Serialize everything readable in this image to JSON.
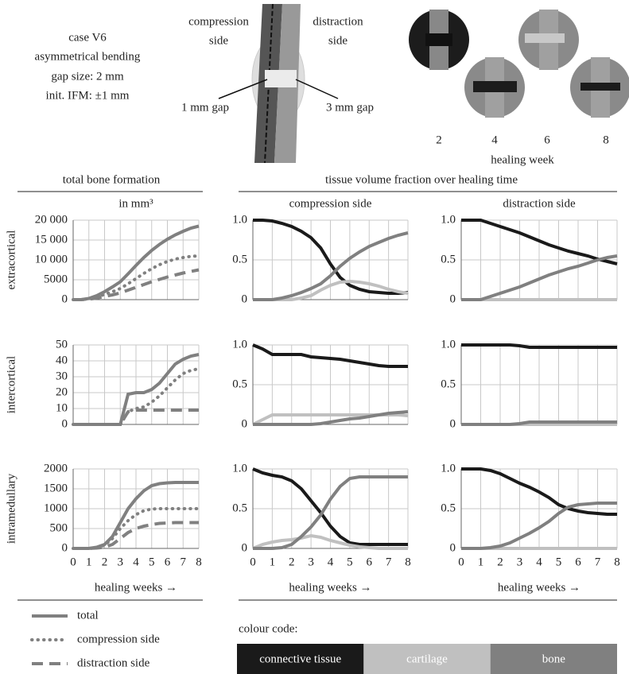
{
  "case_info": [
    "case V6",
    "asymmetrical bending",
    "gap size: 2 mm",
    "init. IFM: ±1 mm"
  ],
  "diagram": {
    "compression_label": [
      "compression",
      "side"
    ],
    "distraction_label": [
      "distraction",
      "side"
    ],
    "gap_left": "1 mm gap",
    "gap_right": "3 mm gap"
  },
  "healing_images": {
    "weeks": [
      "2",
      "4",
      "6",
      "8"
    ],
    "label": "healing week"
  },
  "headings": {
    "left": "total bone formation",
    "right": "tissue volume fraction over healing time"
  },
  "colour_code_label": "colour code:",
  "chart_data": [
    {
      "type": "line",
      "title": "in mm³",
      "ylabel": "extracortical",
      "x": [
        0,
        0.5,
        1,
        1.5,
        2,
        2.5,
        3,
        3.5,
        4,
        4.5,
        5,
        5.5,
        6,
        6.5,
        7,
        7.5,
        8
      ],
      "xlim": [
        0,
        8
      ],
      "xticks": [
        0,
        1,
        2,
        3,
        4,
        5,
        6,
        7,
        8
      ],
      "ylim": [
        0,
        20000
      ],
      "yticks": [
        0,
        5000,
        {
          "value": 10000,
          "label": "10 000"
        },
        {
          "value": 15000,
          "label": "15 000"
        },
        {
          "value": 20000,
          "label": "20 000"
        }
      ],
      "grid": true,
      "series": [
        {
          "name": "total",
          "color": "#808080",
          "dash": "solid",
          "values": [
            0,
            0,
            300,
            1000,
            2000,
            3200,
            4500,
            6500,
            8600,
            10600,
            12400,
            13900,
            15200,
            16300,
            17200,
            18000,
            18500
          ]
        },
        {
          "name": "compression side",
          "color": "#808080",
          "dash": "dotted",
          "values": [
            0,
            0,
            200,
            700,
            1300,
            2000,
            2800,
            4000,
            5300,
            6600,
            7800,
            8800,
            9600,
            10200,
            10600,
            10900,
            11000
          ]
        },
        {
          "name": "distraction side",
          "color": "#808080",
          "dash": "dashed",
          "values": [
            0,
            0,
            100,
            400,
            800,
            1200,
            1700,
            2400,
            3100,
            3800,
            4500,
            5100,
            5700,
            6200,
            6700,
            7100,
            7500
          ]
        }
      ]
    },
    {
      "type": "line",
      "title": "compression side",
      "x": [
        0,
        0.5,
        1,
        1.5,
        2,
        2.5,
        3,
        3.5,
        4,
        4.5,
        5,
        5.5,
        6,
        6.5,
        7,
        7.5,
        8
      ],
      "xlim": [
        0,
        8
      ],
      "xticks": [
        0,
        1,
        2,
        3,
        4,
        5,
        6,
        7,
        8
      ],
      "ylim": [
        0,
        1
      ],
      "yticks": [
        0,
        0.5,
        {
          "value": 1,
          "label": "1.0"
        }
      ],
      "grid": true,
      "series": [
        {
          "name": "connective tissue",
          "color": "#1a1a1a",
          "dash": "solid",
          "values": [
            1,
            1,
            0.99,
            0.96,
            0.92,
            0.86,
            0.78,
            0.65,
            0.45,
            0.28,
            0.18,
            0.13,
            0.1,
            0.09,
            0.08,
            0.08,
            0.09
          ]
        },
        {
          "name": "cartilage",
          "color": "#c0c0c0",
          "dash": "solid",
          "values": [
            0,
            0,
            0,
            0,
            0,
            0.02,
            0.05,
            0.12,
            0.18,
            0.22,
            0.23,
            0.22,
            0.2,
            0.17,
            0.13,
            0.1,
            0.08
          ]
        },
        {
          "name": "bone",
          "color": "#808080",
          "dash": "solid",
          "values": [
            0,
            0,
            0,
            0.02,
            0.05,
            0.09,
            0.14,
            0.2,
            0.3,
            0.42,
            0.52,
            0.6,
            0.67,
            0.72,
            0.77,
            0.81,
            0.84
          ]
        }
      ]
    },
    {
      "type": "line",
      "title": "distraction side",
      "x": [
        0,
        0.5,
        1,
        1.5,
        2,
        2.5,
        3,
        3.5,
        4,
        4.5,
        5,
        5.5,
        6,
        6.5,
        7,
        7.5,
        8
      ],
      "xlim": [
        0,
        8
      ],
      "xticks": [
        0,
        1,
        2,
        3,
        4,
        5,
        6,
        7,
        8
      ],
      "ylim": [
        0,
        1
      ],
      "yticks": [
        0,
        0.5,
        {
          "value": 1,
          "label": "1.0"
        }
      ],
      "grid": true,
      "series": [
        {
          "color": "#1a1a1a",
          "dash": "solid",
          "values": [
            1,
            1,
            1,
            0.96,
            0.92,
            0.88,
            0.84,
            0.79,
            0.74,
            0.69,
            0.65,
            0.61,
            0.58,
            0.55,
            0.51,
            0.48,
            0.45
          ]
        },
        {
          "color": "#c0c0c0",
          "dash": "solid",
          "values": [
            0,
            0,
            0,
            0,
            0,
            0,
            0,
            0,
            0,
            0,
            0,
            0,
            0,
            0,
            0,
            0,
            0
          ]
        },
        {
          "color": "#808080",
          "dash": "solid",
          "values": [
            0,
            0,
            0,
            0.04,
            0.08,
            0.12,
            0.16,
            0.21,
            0.26,
            0.31,
            0.35,
            0.39,
            0.42,
            0.46,
            0.5,
            0.53,
            0.55
          ]
        }
      ]
    },
    {
      "type": "line",
      "ylabel": "intercortical",
      "x": [
        0,
        0.5,
        1,
        1.5,
        2,
        2.5,
        3,
        3.5,
        4,
        4.5,
        5,
        5.5,
        6,
        6.5,
        7,
        7.5,
        8
      ],
      "xlim": [
        0,
        8
      ],
      "xticks": [
        0,
        1,
        2,
        3,
        4,
        5,
        6,
        7,
        8
      ],
      "ylim": [
        0,
        50
      ],
      "yticks": [
        0,
        10,
        20,
        30,
        40,
        50
      ],
      "grid": true,
      "series": [
        {
          "color": "#808080",
          "dash": "solid",
          "values": [
            0,
            0,
            0,
            0,
            0,
            0,
            0,
            19,
            20,
            20,
            22,
            26,
            32,
            38,
            41,
            43,
            44
          ]
        },
        {
          "color": "#808080",
          "dash": "dotted",
          "values": [
            0,
            0,
            0,
            0,
            0,
            0,
            0,
            8,
            10,
            11,
            14,
            18,
            23,
            28,
            32,
            34,
            35
          ]
        },
        {
          "color": "#808080",
          "dash": "dashed",
          "values": [
            0,
            0,
            0,
            0,
            0,
            0,
            0,
            8,
            9,
            9,
            9,
            9,
            9,
            9,
            9,
            9,
            9
          ]
        }
      ]
    },
    {
      "type": "line",
      "x": [
        0,
        0.5,
        1,
        1.5,
        2,
        2.5,
        3,
        3.5,
        4,
        4.5,
        5,
        5.5,
        6,
        6.5,
        7,
        7.5,
        8
      ],
      "xlim": [
        0,
        8
      ],
      "xticks": [
        0,
        1,
        2,
        3,
        4,
        5,
        6,
        7,
        8
      ],
      "ylim": [
        0,
        1
      ],
      "yticks": [
        0,
        0.5,
        {
          "value": 1,
          "label": "1.0"
        }
      ],
      "grid": true,
      "series": [
        {
          "color": "#1a1a1a",
          "dash": "solid",
          "values": [
            1,
            0.95,
            0.88,
            0.88,
            0.88,
            0.88,
            0.85,
            0.84,
            0.83,
            0.82,
            0.8,
            0.78,
            0.76,
            0.74,
            0.73,
            0.73,
            0.73
          ]
        },
        {
          "color": "#c0c0c0",
          "dash": "solid",
          "values": [
            0,
            0.06,
            0.12,
            0.12,
            0.12,
            0.12,
            0.12,
            0.12,
            0.12,
            0.12,
            0.12,
            0.12,
            0.12,
            0.12,
            0.12,
            0.12,
            0.11
          ]
        },
        {
          "color": "#808080",
          "dash": "solid",
          "values": [
            0,
            0,
            0,
            0,
            0,
            0,
            0,
            0.01,
            0.03,
            0.05,
            0.07,
            0.08,
            0.1,
            0.12,
            0.14,
            0.15,
            0.16
          ]
        }
      ]
    },
    {
      "type": "line",
      "x": [
        0,
        0.5,
        1,
        1.5,
        2,
        2.5,
        3,
        3.5,
        4,
        4.5,
        5,
        5.5,
        6,
        6.5,
        7,
        7.5,
        8
      ],
      "xlim": [
        0,
        8
      ],
      "xticks": [
        0,
        1,
        2,
        3,
        4,
        5,
        6,
        7,
        8
      ],
      "ylim": [
        0,
        1
      ],
      "yticks": [
        0,
        0.5,
        {
          "value": 1,
          "label": "1.0"
        }
      ],
      "grid": true,
      "series": [
        {
          "color": "#1a1a1a",
          "dash": "solid",
          "values": [
            1,
            1,
            1,
            1,
            1,
            1,
            0.99,
            0.97,
            0.97,
            0.97,
            0.97,
            0.97,
            0.97,
            0.97,
            0.97,
            0.97,
            0.97
          ]
        },
        {
          "color": "#c0c0c0",
          "dash": "solid",
          "values": [
            0,
            0,
            0,
            0,
            0,
            0,
            0,
            0,
            0,
            0,
            0,
            0,
            0,
            0,
            0,
            0,
            0
          ]
        },
        {
          "color": "#808080",
          "dash": "solid",
          "values": [
            0,
            0,
            0,
            0,
            0,
            0,
            0.01,
            0.03,
            0.03,
            0.03,
            0.03,
            0.03,
            0.03,
            0.03,
            0.03,
            0.03,
            0.03
          ]
        }
      ]
    },
    {
      "type": "line",
      "ylabel": "intramedullary",
      "xlabel": "healing weeks →",
      "x": [
        0,
        0.5,
        1,
        1.5,
        2,
        2.5,
        3,
        3.5,
        4,
        4.5,
        5,
        5.5,
        6,
        6.5,
        7,
        7.5,
        8
      ],
      "xlim": [
        0,
        8
      ],
      "xticks": [
        0,
        1,
        2,
        3,
        4,
        5,
        6,
        7,
        8
      ],
      "ylim": [
        0,
        2000
      ],
      "yticks": [
        0,
        500,
        1000,
        1500,
        2000
      ],
      "grid": true,
      "series": [
        {
          "color": "#808080",
          "dash": "solid",
          "values": [
            0,
            0,
            0,
            30,
            100,
            300,
            650,
            1000,
            1250,
            1450,
            1580,
            1630,
            1650,
            1660,
            1660,
            1660,
            1660
          ]
        },
        {
          "color": "#808080",
          "dash": "dotted",
          "values": [
            0,
            0,
            0,
            20,
            80,
            250,
            500,
            700,
            850,
            950,
            990,
            1000,
            1000,
            1000,
            1000,
            1000,
            1000
          ]
        },
        {
          "color": "#808080",
          "dash": "dashed",
          "values": [
            0,
            0,
            0,
            10,
            30,
            100,
            250,
            400,
            500,
            560,
            600,
            630,
            640,
            650,
            650,
            650,
            650
          ]
        }
      ]
    },
    {
      "type": "line",
      "xlabel": "healing weeks →",
      "x": [
        0,
        0.5,
        1,
        1.5,
        2,
        2.5,
        3,
        3.5,
        4,
        4.5,
        5,
        5.5,
        6,
        6.5,
        7,
        7.5,
        8
      ],
      "xlim": [
        0,
        8
      ],
      "xticks": [
        0,
        1,
        2,
        3,
        4,
        5,
        6,
        7,
        8
      ],
      "ylim": [
        0,
        1
      ],
      "yticks": [
        0,
        0.5,
        {
          "value": 1,
          "label": "1.0"
        }
      ],
      "grid": true,
      "series": [
        {
          "color": "#1a1a1a",
          "dash": "solid",
          "values": [
            1,
            0.95,
            0.92,
            0.9,
            0.85,
            0.75,
            0.6,
            0.45,
            0.28,
            0.15,
            0.07,
            0.05,
            0.05,
            0.05,
            0.05,
            0.05,
            0.05
          ]
        },
        {
          "color": "#c0c0c0",
          "dash": "solid",
          "values": [
            0,
            0.05,
            0.08,
            0.1,
            0.11,
            0.13,
            0.16,
            0.14,
            0.1,
            0.07,
            0.04,
            0.02,
            0.01,
            0,
            0,
            0,
            0
          ]
        },
        {
          "color": "#808080",
          "dash": "solid",
          "values": [
            0,
            0,
            0,
            0.01,
            0.05,
            0.15,
            0.27,
            0.42,
            0.62,
            0.78,
            0.88,
            0.9,
            0.9,
            0.9,
            0.9,
            0.9,
            0.9
          ]
        }
      ]
    },
    {
      "type": "line",
      "xlabel": "healing weeks →",
      "x": [
        0,
        0.5,
        1,
        1.5,
        2,
        2.5,
        3,
        3.5,
        4,
        4.5,
        5,
        5.5,
        6,
        6.5,
        7,
        7.5,
        8
      ],
      "xlim": [
        0,
        8
      ],
      "xticks": [
        0,
        1,
        2,
        3,
        4,
        5,
        6,
        7,
        8
      ],
      "ylim": [
        0,
        1
      ],
      "yticks": [
        0,
        0.5,
        {
          "value": 1,
          "label": "1.0"
        }
      ],
      "grid": true,
      "series": [
        {
          "color": "#1a1a1a",
          "dash": "solid",
          "values": [
            1,
            1,
            1,
            0.98,
            0.94,
            0.88,
            0.82,
            0.77,
            0.71,
            0.64,
            0.55,
            0.5,
            0.47,
            0.45,
            0.44,
            0.43,
            0.43
          ]
        },
        {
          "color": "#c0c0c0",
          "dash": "solid",
          "values": [
            0,
            0,
            0,
            0,
            0,
            0,
            0,
            0,
            0,
            0,
            0,
            0,
            0,
            0,
            0,
            0,
            0
          ]
        },
        {
          "color": "#808080",
          "dash": "solid",
          "values": [
            0,
            0,
            0,
            0.01,
            0.03,
            0.07,
            0.13,
            0.19,
            0.26,
            0.34,
            0.44,
            0.52,
            0.55,
            0.56,
            0.57,
            0.57,
            0.57
          ]
        }
      ]
    }
  ]
}
